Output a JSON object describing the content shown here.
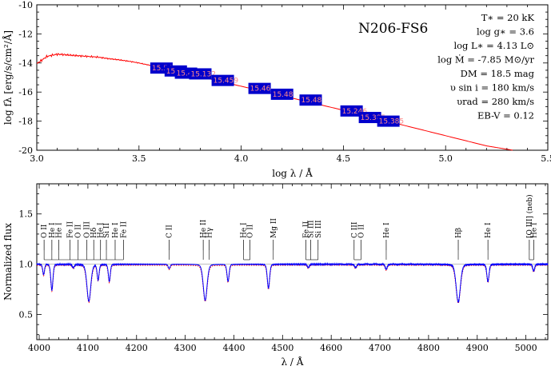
{
  "star_name": "N206-FS6",
  "parameters": [
    "T∗ = 20 kK",
    "log g∗ = 3.6",
    "log L∗ = 4.13 L⊙",
    "log Ṁ = -7.85 M⊙/yr",
    "DM = 18.5 mag",
    "υ sin i = 180 km/s",
    "υrad = 280 km/s",
    "EB-V = 0.12"
  ],
  "colors": {
    "model": "#ff0000",
    "observed": "#0000ff",
    "photometry": "#0000cc",
    "photometry_label": "#ff8a8a"
  },
  "chart_data": [
    {
      "type": "line",
      "panel": "sed",
      "xlabel": "log λ / Å",
      "ylabel": "log fλ [erg/s/cm²/Å]",
      "xlim": [
        3.0,
        5.5
      ],
      "ylim": [
        -20,
        -10
      ],
      "xticks": [
        "3.0",
        "3.5",
        "4.0",
        "4.5",
        "5.0",
        "5.5"
      ],
      "yticks": [
        "-20",
        "-18",
        "-16",
        "-14",
        "-12",
        "-10"
      ],
      "model_sed": {
        "x": [
          3.0,
          3.03,
          3.05,
          3.08,
          3.1,
          3.13,
          3.15,
          3.2,
          3.25,
          3.3,
          3.35,
          3.4,
          3.45,
          3.5,
          3.55,
          3.6,
          3.8,
          4.0,
          4.2,
          4.5,
          4.8,
          5.0,
          5.2,
          5.33
        ],
        "y": [
          -14.05,
          -13.75,
          -13.55,
          -13.45,
          -13.4,
          -13.42,
          -13.45,
          -13.5,
          -13.55,
          -13.6,
          -13.7,
          -13.78,
          -13.88,
          -14.0,
          -14.15,
          -14.3,
          -14.95,
          -15.6,
          -16.25,
          -17.25,
          -18.3,
          -19.0,
          -19.7,
          -20.0
        ]
      },
      "photometry": [
        {
          "x": 3.61,
          "y": -14.35,
          "label": "15.54"
        },
        {
          "x": 3.68,
          "y": -14.55,
          "label": "15.597"
        },
        {
          "x": 3.73,
          "y": -14.7,
          "label": "15.484"
        },
        {
          "x": 3.8,
          "y": -14.75,
          "label": "15.132"
        },
        {
          "x": 3.91,
          "y": -15.2,
          "label": "15.459"
        },
        {
          "x": 4.09,
          "y": -15.75,
          "label": "15.46"
        },
        {
          "x": 4.2,
          "y": -16.15,
          "label": "15.48"
        },
        {
          "x": 4.34,
          "y": -16.55,
          "label": "15.48"
        },
        {
          "x": 4.54,
          "y": -17.3,
          "label": "15.246"
        },
        {
          "x": 4.63,
          "y": -17.75,
          "label": "15.385"
        },
        {
          "x": 4.72,
          "y": -18.0,
          "label": "15.385"
        }
      ]
    },
    {
      "type": "line",
      "panel": "normalized_spectrum",
      "xlabel": "λ / Å",
      "ylabel": "Normalized flux",
      "xlim": [
        3995,
        5045
      ],
      "ylim": [
        0.25,
        1.8
      ],
      "xticks": [
        "4000",
        "4100",
        "4200",
        "4300",
        "4400",
        "4500",
        "4600",
        "4700",
        "4800",
        "4900",
        "5000"
      ],
      "yticks": [
        "0.5",
        "1.0",
        "1.5"
      ],
      "continuum": 1.0,
      "absorption_lines": [
        {
          "center": 4009,
          "depth": 0.12,
          "width": 1.8
        },
        {
          "center": 4026,
          "depth": 0.3,
          "width": 2.2
        },
        {
          "center": 4070,
          "depth": 0.04,
          "width": 2.0
        },
        {
          "center": 4102,
          "depth": 0.43,
          "width": 4.0
        },
        {
          "center": 4121,
          "depth": 0.18,
          "width": 2.0
        },
        {
          "center": 4144,
          "depth": 0.2,
          "width": 2.0
        },
        {
          "center": 4267,
          "depth": 0.05,
          "width": 2.0
        },
        {
          "center": 4341,
          "depth": 0.42,
          "width": 4.0
        },
        {
          "center": 4388,
          "depth": 0.2,
          "width": 2.2
        },
        {
          "center": 4471,
          "depth": 0.28,
          "width": 2.4
        },
        {
          "center": 4553,
          "depth": 0.04,
          "width": 2.0
        },
        {
          "center": 4650,
          "depth": 0.04,
          "width": 2.0
        },
        {
          "center": 4713,
          "depth": 0.06,
          "width": 2.0
        },
        {
          "center": 4861,
          "depth": 0.44,
          "width": 4.4
        },
        {
          "center": 4922,
          "depth": 0.2,
          "width": 2.3
        },
        {
          "center": 5016,
          "depth": 0.08,
          "width": 2.0
        }
      ],
      "line_ids": [
        {
          "label": "O II",
          "lambda": 4010
        },
        {
          "label": "He I",
          "lambda": 4026
        },
        {
          "label": "He I",
          "lambda": 4040
        },
        {
          "label": "Fe II",
          "lambda": 4063
        },
        {
          "label": "O II",
          "lambda": 4080
        },
        {
          "label": "O III",
          "lambda": 4098
        },
        {
          "label": "Hδ",
          "lambda": 4112
        },
        {
          "label": "He I",
          "lambda": 4126
        },
        {
          "label": "Si II",
          "lambda": 4138
        },
        {
          "label": "He I",
          "lambda": 4156
        },
        {
          "label": "Fe II",
          "lambda": 4173
        },
        {
          "label": "C II",
          "lambda": 4267
        },
        {
          "label": "He II",
          "lambda": 4337
        },
        {
          "label": "Hγ",
          "lambda": 4349
        },
        {
          "label": "He I",
          "lambda": 4420
        },
        {
          "label": "O II",
          "lambda": 4433
        },
        {
          "label": "Mg II",
          "lambda": 4481
        },
        {
          "label": "Fe II",
          "lambda": 4548
        },
        {
          "label": "Si III",
          "lambda": 4558
        },
        {
          "label": "Si III",
          "lambda": 4573
        },
        {
          "label": "C III",
          "lambda": 4647
        },
        {
          "label": "O II",
          "lambda": 4661
        },
        {
          "label": "He I",
          "lambda": 4713
        },
        {
          "label": "Hβ",
          "lambda": 4861
        },
        {
          "label": "He I",
          "lambda": 4922
        },
        {
          "label": "[O III] (neb)",
          "lambda": 5007
        },
        {
          "label": "He I",
          "lambda": 5016
        }
      ]
    }
  ]
}
